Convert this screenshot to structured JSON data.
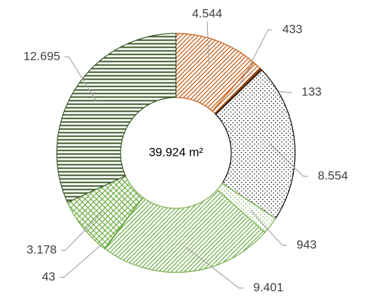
{
  "chart_data": {
    "type": "donut",
    "annotation": "39.924 m²",
    "values": [
      4544,
      433,
      133,
      8554,
      943,
      9401,
      43,
      3178,
      12695
    ],
    "value_labels": [
      "4.544",
      "433",
      "133",
      "8.554",
      "943",
      "9.401",
      "43",
      "3.178",
      "12.695"
    ],
    "colors": [
      "#c55a11",
      "#c55a11",
      "#843c0c",
      "#000000",
      "#70ad47",
      "#70ad47",
      "#70ad47",
      "#70ad47",
      "#385723"
    ],
    "patterns": [
      "diagonal",
      "diagonal",
      "solid",
      "dots",
      "dots",
      "diagonal",
      "diagonal",
      "crosshatch",
      "horizontal"
    ]
  }
}
